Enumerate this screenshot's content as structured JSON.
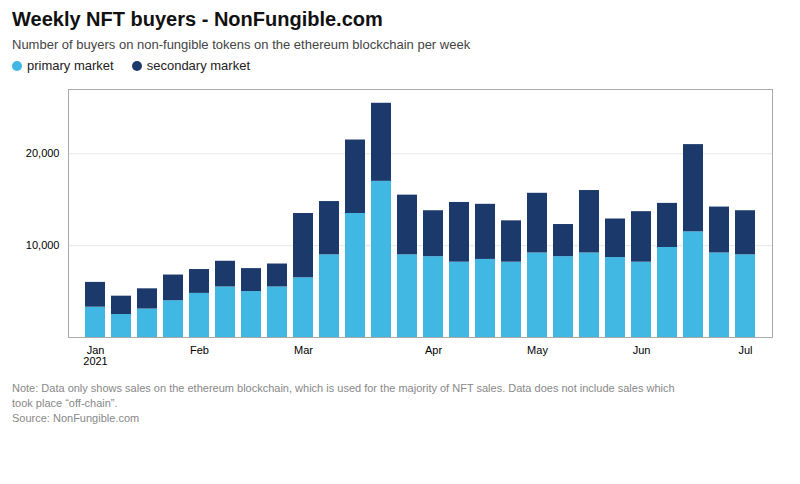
{
  "chart_data": {
    "type": "bar",
    "title": "Weekly NFT buyers - NonFungible.com",
    "subtitle": "Number of buyers on non-fungible tokens on the ethereum blockchain per week",
    "notes": [
      "Note: Data only shows sales on the ethereum blockchain, which is used for the majority of NFT sales. Data does not include sales which",
      "took place “off-chain”.",
      "Source: NonFungible.com"
    ],
    "categories": [
      "Jan\n2021",
      null,
      null,
      null,
      "Feb",
      null,
      null,
      null,
      "Mar",
      null,
      null,
      null,
      null,
      "Apr",
      null,
      null,
      null,
      "May",
      null,
      null,
      null,
      "Jun",
      null,
      null,
      null,
      "Jul"
    ],
    "series": [
      {
        "name": "primary market",
        "color": "#41B8E4",
        "values": [
          3300,
          2500,
          3100,
          4000,
          4800,
          5500,
          5000,
          5500,
          6500,
          9000,
          13500,
          17000,
          9000,
          8800,
          8200,
          8500,
          8200,
          9200,
          8800,
          9200,
          8700,
          8200,
          9800,
          11500,
          9200,
          9000
        ]
      },
      {
        "name": "secondary market",
        "color": "#1B3A6B",
        "values": [
          2700,
          2000,
          2200,
          2800,
          2600,
          2800,
          2500,
          2500,
          7000,
          5800,
          8000,
          8500,
          6500,
          5000,
          6500,
          6000,
          4500,
          6500,
          3500,
          6800,
          4200,
          5500,
          4800,
          9500,
          5000,
          4800
        ]
      }
    ],
    "stacked": true,
    "ylim": [
      0,
      27000
    ],
    "yticks": [
      {
        "value": 10000,
        "label": "10,000"
      },
      {
        "value": 20000,
        "label": "20,000"
      }
    ],
    "grid": true,
    "legend": "upper left"
  }
}
